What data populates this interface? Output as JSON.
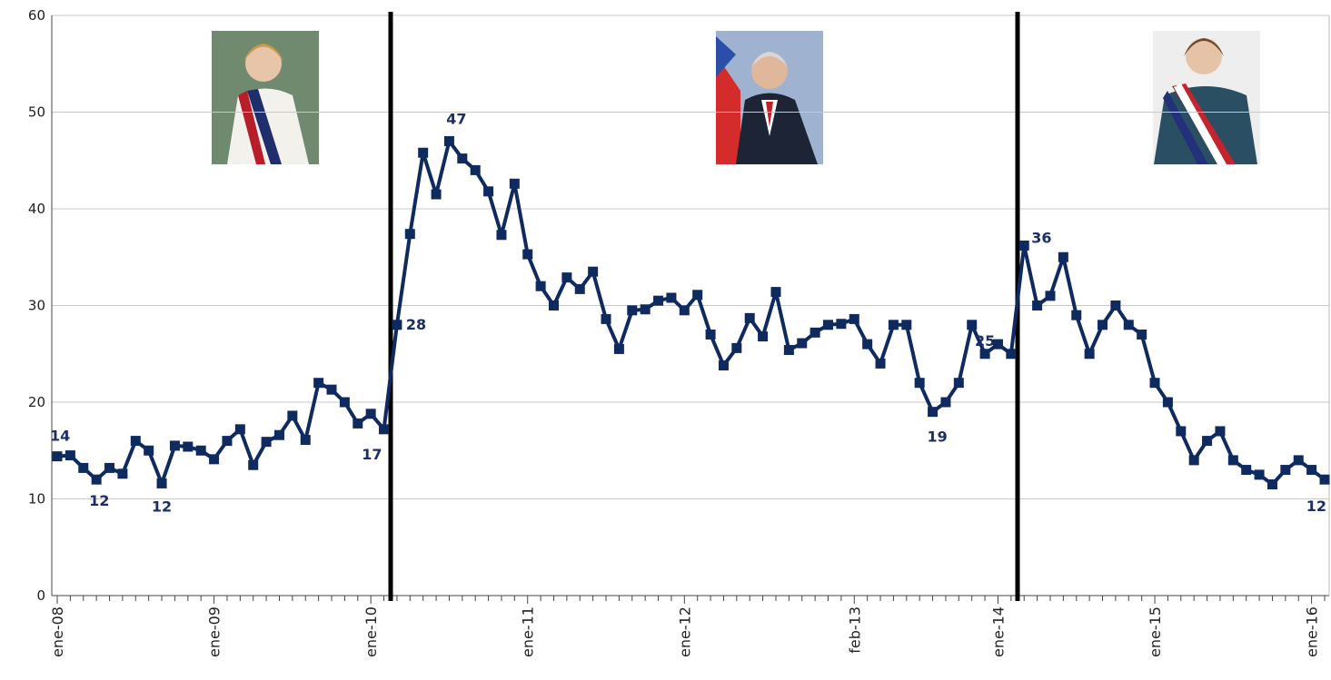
{
  "chart_data": {
    "type": "line",
    "categories": [
      "ene-08",
      null,
      null,
      null,
      null,
      null,
      null,
      null,
      null,
      null,
      null,
      null,
      "ene-09",
      null,
      null,
      null,
      null,
      null,
      null,
      null,
      null,
      null,
      null,
      null,
      "ene-10",
      null,
      null,
      null,
      null,
      null,
      null,
      null,
      null,
      null,
      null,
      null,
      "ene-11",
      null,
      null,
      null,
      null,
      null,
      null,
      null,
      null,
      null,
      null,
      null,
      "ene-12",
      null,
      null,
      null,
      null,
      null,
      null,
      null,
      null,
      null,
      null,
      null,
      null,
      "feb-13",
      null,
      null,
      null,
      null,
      null,
      null,
      null,
      null,
      null,
      null,
      "ene-14",
      null,
      null,
      null,
      null,
      null,
      null,
      null,
      null,
      null,
      null,
      null,
      "ene-15",
      null,
      null,
      null,
      null,
      null,
      null,
      null,
      null,
      null,
      null,
      null,
      "ene-16",
      null
    ],
    "series": [
      {
        "color": "#0f2a5e",
        "values": [
          14.4,
          14.5,
          13.2,
          12,
          13.2,
          12.6,
          16,
          15,
          11.6,
          15.5,
          15.4,
          15,
          14.1,
          16,
          17.2,
          13.5,
          15.9,
          16.6,
          18.6,
          16.1,
          22,
          21.3,
          20,
          17.8,
          18.8,
          17.2,
          28,
          37.4,
          45.8,
          41.5,
          47,
          45.2,
          44,
          41.8,
          37.3,
          42.6,
          35.3,
          32,
          30,
          32.9,
          31.7,
          33.5,
          28.6,
          25.5,
          29.5,
          29.6,
          30.5,
          30.8,
          29.5,
          31.1,
          27,
          23.8,
          25.6,
          28.7,
          26.8,
          31.4,
          25.4,
          26.1,
          27.2,
          28,
          28.1,
          28.6,
          26,
          24,
          28,
          28,
          22,
          19,
          20,
          22,
          28,
          25,
          26,
          25,
          36.2,
          30,
          31,
          35,
          29,
          25,
          28,
          30,
          28,
          27,
          22,
          20,
          17,
          14,
          16,
          17,
          14,
          13,
          12.5,
          11.5,
          13,
          14,
          13,
          12
        ],
        "value_labels": [
          "14",
          null,
          null,
          "12",
          null,
          null,
          null,
          null,
          "12",
          null,
          null,
          null,
          null,
          null,
          null,
          null,
          null,
          null,
          null,
          null,
          null,
          null,
          null,
          null,
          null,
          "17",
          "28",
          null,
          null,
          null,
          "47",
          null,
          null,
          null,
          null,
          null,
          null,
          null,
          null,
          null,
          null,
          null,
          null,
          null,
          null,
          null,
          null,
          null,
          null,
          null,
          null,
          null,
          null,
          null,
          null,
          null,
          null,
          null,
          null,
          null,
          null,
          null,
          null,
          null,
          null,
          null,
          null,
          "19",
          null,
          null,
          null,
          "25",
          null,
          null,
          "36",
          null,
          null,
          null,
          null,
          null,
          null,
          null,
          null,
          null,
          null,
          null,
          null,
          null,
          null,
          null,
          null,
          null,
          null,
          null,
          null,
          null,
          null,
          "12"
        ]
      }
    ],
    "ylim": [
      0,
      60
    ],
    "yticks": [
      0,
      10,
      20,
      30,
      40,
      50,
      60
    ],
    "grid": true
  }
}
